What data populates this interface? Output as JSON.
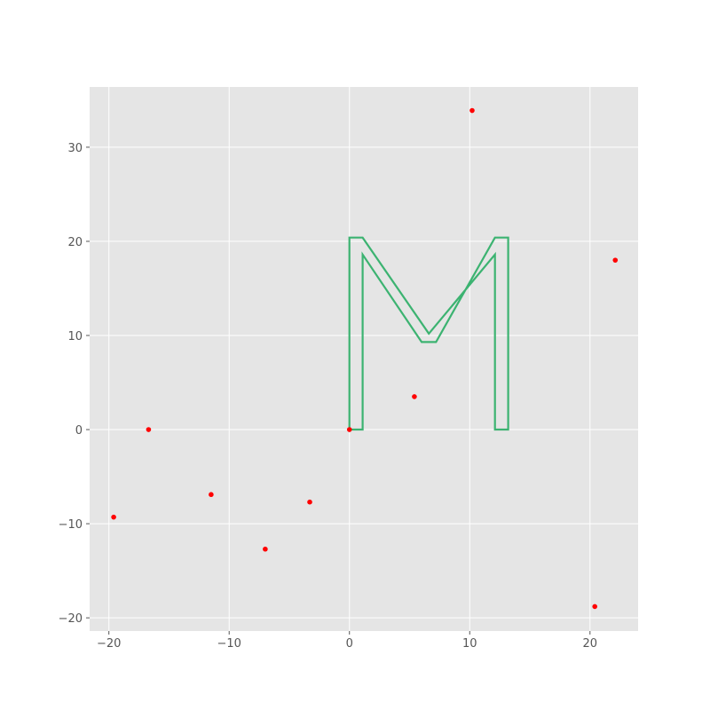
{
  "chart_data": {
    "type": "scatter",
    "title": "",
    "xlabel": "",
    "ylabel": "",
    "xlim": [
      -21.6,
      24.0
    ],
    "ylim": [
      -21.4,
      36.4
    ],
    "grid": true,
    "style": "ggplot",
    "background_color": "#e5e5e5",
    "grid_color": "#ffffff",
    "x_ticks": [
      -20,
      -10,
      0,
      10,
      20
    ],
    "y_ticks": [
      -20,
      -10,
      0,
      10,
      20,
      30
    ],
    "x_tick_labels": [
      "−20",
      "−10",
      "0",
      "10",
      "20"
    ],
    "y_tick_labels": [
      "−20",
      "−10",
      "0",
      "10",
      "20",
      "30"
    ],
    "series": [
      {
        "kind": "line",
        "color": "#3cb371",
        "points": [
          [
            0.0,
            0.0
          ],
          [
            0.0,
            20.4
          ],
          [
            1.1,
            20.4
          ],
          [
            6.6,
            10.2
          ],
          [
            12.1,
            18.6
          ],
          [
            12.1,
            0.0
          ],
          [
            13.2,
            0.0
          ],
          [
            13.2,
            20.4
          ],
          [
            12.1,
            20.4
          ],
          [
            7.2,
            9.3
          ],
          [
            6.0,
            9.3
          ],
          [
            1.1,
            18.6
          ],
          [
            1.1,
            0.0
          ],
          [
            0.0,
            0.0
          ]
        ]
      },
      {
        "kind": "scatter",
        "color": "#ff0000",
        "points": [
          [
            0.0,
            0.0
          ],
          [
            5.4,
            3.5
          ],
          [
            10.2,
            33.9
          ],
          [
            22.1,
            18.0
          ],
          [
            20.4,
            -18.8
          ],
          [
            -3.3,
            -7.7
          ],
          [
            -7.0,
            -12.7
          ],
          [
            -11.5,
            -6.9
          ],
          [
            -16.7,
            0.0
          ],
          [
            -19.6,
            -9.3
          ]
        ]
      }
    ]
  }
}
